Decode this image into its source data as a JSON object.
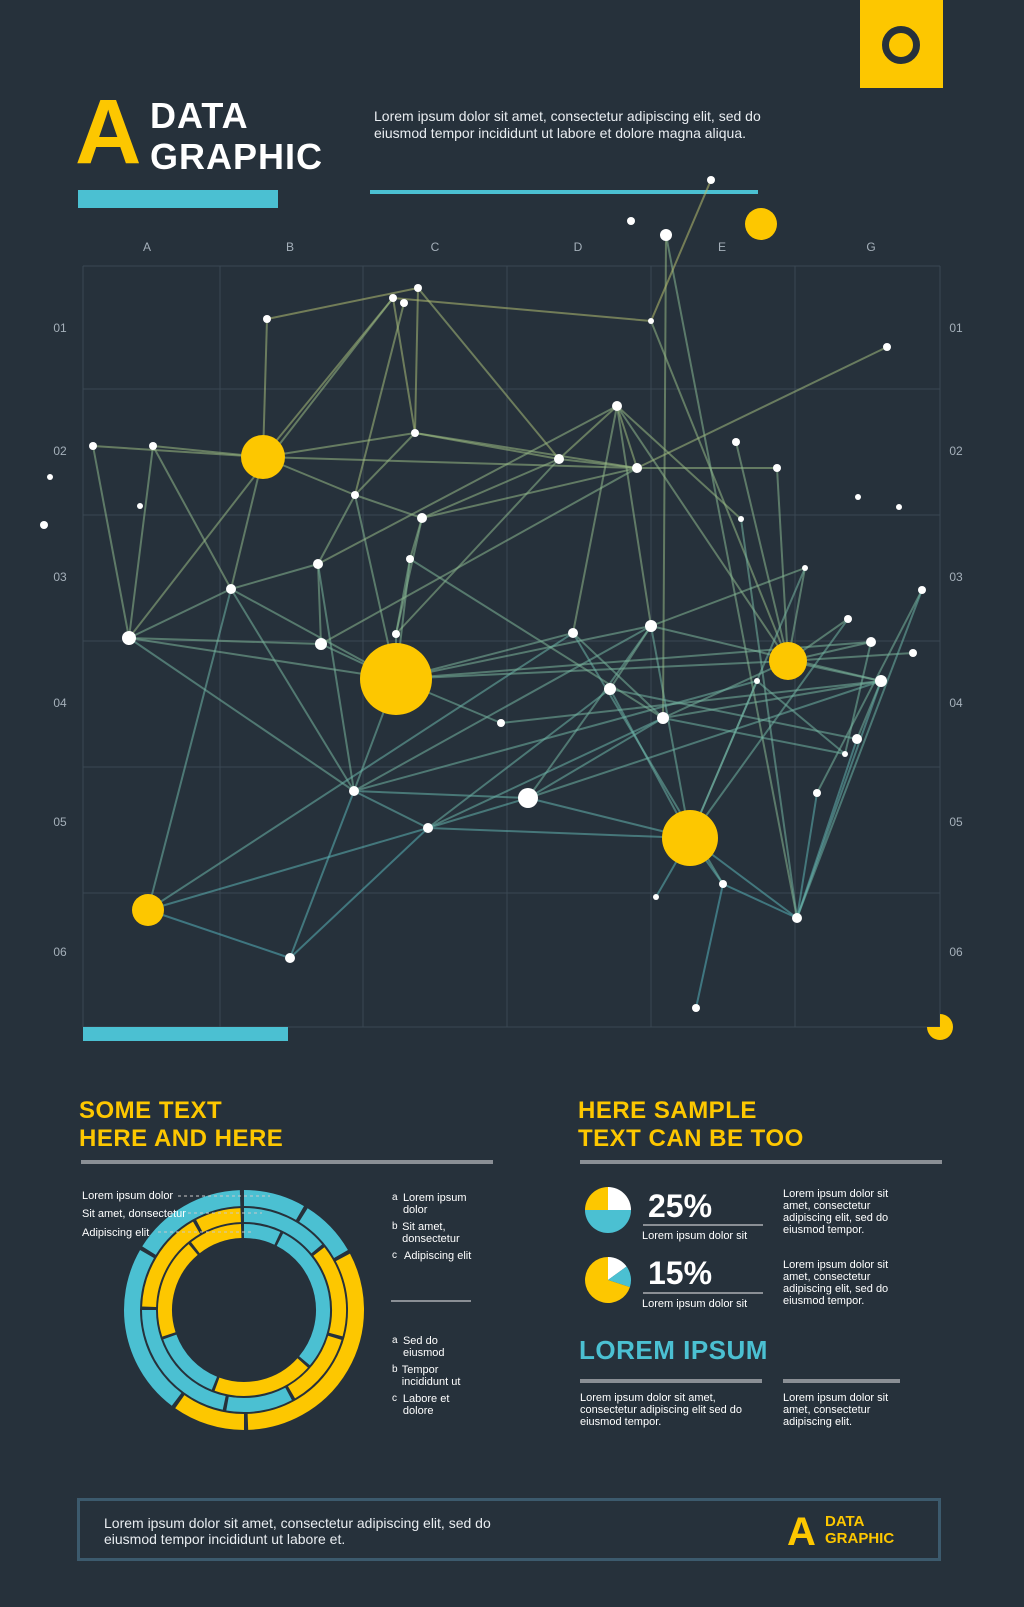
{
  "logo": {
    "letter": "A",
    "line1": "DATA",
    "line2": "GRAPHIC"
  },
  "intro": "Lorem ipsum dolor sit amet, consectetur adipiscing elit, sed do eiusmod tempor incididunt ut labore et dolore magna aliqua.",
  "graph": {
    "columns": [
      "A",
      "B",
      "C",
      "D",
      "E",
      "G"
    ],
    "rows": [
      "01",
      "02",
      "03",
      "04",
      "05",
      "06"
    ]
  },
  "left_section": {
    "heading_line1": "SOME TEXT",
    "heading_line2": "HERE AND HERE",
    "donut_labels": [
      "Lorem ipsum dolor",
      "Sit amet, donsectetur",
      "Adipiscing elit"
    ],
    "legend_top": [
      {
        "letter": "a",
        "text": "Lorem ipsum dolor"
      },
      {
        "letter": "b",
        "text": "Sit amet, donsectetur"
      },
      {
        "letter": "c",
        "text": "Adipiscing elit"
      }
    ],
    "legend_bottom": [
      {
        "letter": "a",
        "text": "Sed do eiusmod"
      },
      {
        "letter": "b",
        "text": "Tempor incididunt ut"
      },
      {
        "letter": "c",
        "text": "Labore et dolore"
      }
    ]
  },
  "right_section": {
    "heading_line1": "HERE SAMPLE",
    "heading_line2": "TEXT CAN BE TOO",
    "stats": [
      {
        "value": "25%",
        "caption": "Lorem ipsum dolor sit",
        "side": "Lorem ipsum dolor sit amet, consectetur adipiscing elit, sed do eiusmod tempor."
      },
      {
        "value": "15%",
        "caption": "Lorem ipsum dolor sit",
        "side": "Lorem ipsum dolor sit amet, consectetur adipiscing elit, sed do eiusmod tempor."
      }
    ],
    "sub_heading": "LOREM IPSUM",
    "body_left": "Lorem ipsum dolor sit amet, consectetur adipiscing elit  sed do eiusmod tempor.",
    "body_right": "Lorem ipsum dolor sit amet, consectetur adipiscing elit."
  },
  "footer": {
    "text": "Lorem ipsum dolor sit amet, consectetur adipiscing elit, sed do eiusmod tempor incididunt ut labore et.",
    "logo_letter": "A",
    "logo_line1": "DATA",
    "logo_line2": "GRAPHIC"
  },
  "colors": {
    "background": "#26313b",
    "yellow": "#fdc700",
    "cyan": "#4bc0d2",
    "rule": "#8a8f95"
  }
}
